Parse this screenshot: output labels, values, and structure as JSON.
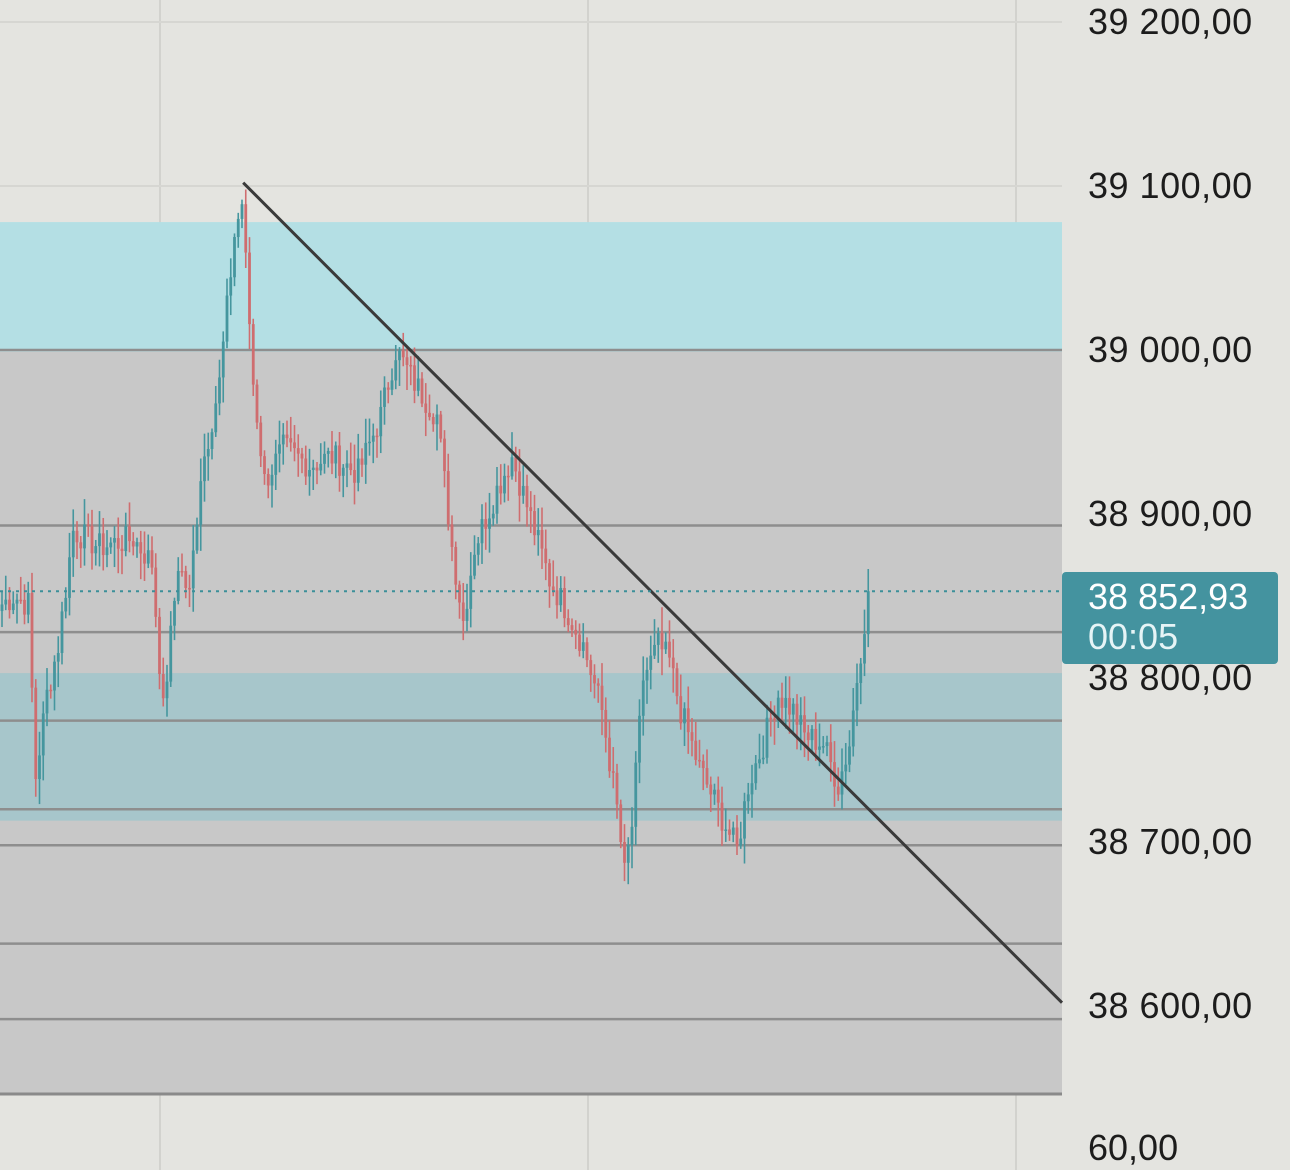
{
  "chart_data": {
    "type": "candlestick",
    "y_axis": {
      "ticks": [
        "39 200,00",
        "39 100,00",
        "39 000,00",
        "38 900,00",
        "38 800,00",
        "38 700,00",
        "38 600,00"
      ],
      "tick_values": [
        39200,
        39100,
        39000,
        38900,
        38800,
        38700,
        38600
      ],
      "range": [
        38550,
        39215
      ]
    },
    "current_price": {
      "label": "38 852,93",
      "value": 38852.93,
      "countdown": "00:05"
    },
    "indicator_pane_label": "60,00",
    "zones": [
      {
        "name": "supply-zone",
        "from": 38999,
        "to": 39078,
        "color": "#b4dfe4"
      },
      {
        "name": "demand-zone",
        "from": 38713,
        "to": 38803,
        "color": "#a1c5cb"
      }
    ],
    "horizontal_levels": [
      39000,
      38893,
      38828,
      38774,
      38720,
      38698,
      38638,
      38592
    ],
    "trendline": {
      "from": {
        "bar": 0.25,
        "price": 39102
      },
      "to": {
        "bar": 1.0,
        "price": 38602
      }
    },
    "colors": {
      "up": "#45969e",
      "down": "#cf6d6f",
      "zone_gray": "#c8c8c8",
      "level_line": "#8e8e8e",
      "trendline": "#3a3a3a",
      "price_line": "#3b8f99"
    },
    "waypoints": [
      [
        0,
        38845
      ],
      [
        3,
        38850
      ],
      [
        7,
        38845
      ],
      [
        9,
        38740
      ],
      [
        12,
        38790
      ],
      [
        15,
        38820
      ],
      [
        19,
        38890
      ],
      [
        26,
        38880
      ],
      [
        35,
        38885
      ],
      [
        40,
        38870
      ],
      [
        43,
        38780
      ],
      [
        47,
        38870
      ],
      [
        50,
        38850
      ],
      [
        53,
        38925
      ],
      [
        58,
        38980
      ],
      [
        62,
        39070
      ],
      [
        64,
        39090
      ],
      [
        67,
        38980
      ],
      [
        70,
        38920
      ],
      [
        75,
        38940
      ],
      [
        82,
        38930
      ],
      [
        88,
        38935
      ],
      [
        95,
        38925
      ],
      [
        101,
        38960
      ],
      [
        105,
        39000
      ],
      [
        110,
        38980
      ],
      [
        116,
        38960
      ],
      [
        120,
        38880
      ],
      [
        123,
        38835
      ],
      [
        126,
        38880
      ],
      [
        132,
        38915
      ],
      [
        136,
        38935
      ],
      [
        142,
        38890
      ],
      [
        146,
        38860
      ],
      [
        151,
        38840
      ],
      [
        155,
        38820
      ],
      [
        160,
        38780
      ],
      [
        164,
        38720
      ],
      [
        166,
        38680
      ],
      [
        168,
        38710
      ],
      [
        171,
        38800
      ],
      [
        175,
        38820
      ],
      [
        178,
        38810
      ],
      [
        181,
        38780
      ],
      [
        186,
        38745
      ],
      [
        190,
        38725
      ],
      [
        193,
        38710
      ],
      [
        196,
        38695
      ],
      [
        199,
        38735
      ],
      [
        203,
        38760
      ],
      [
        207,
        38790
      ],
      [
        211,
        38780
      ],
      [
        214,
        38765
      ],
      [
        219,
        38760
      ],
      [
        223,
        38735
      ],
      [
        226,
        38760
      ],
      [
        228,
        38800
      ],
      [
        231,
        38852
      ]
    ],
    "num_bars": 232
  }
}
